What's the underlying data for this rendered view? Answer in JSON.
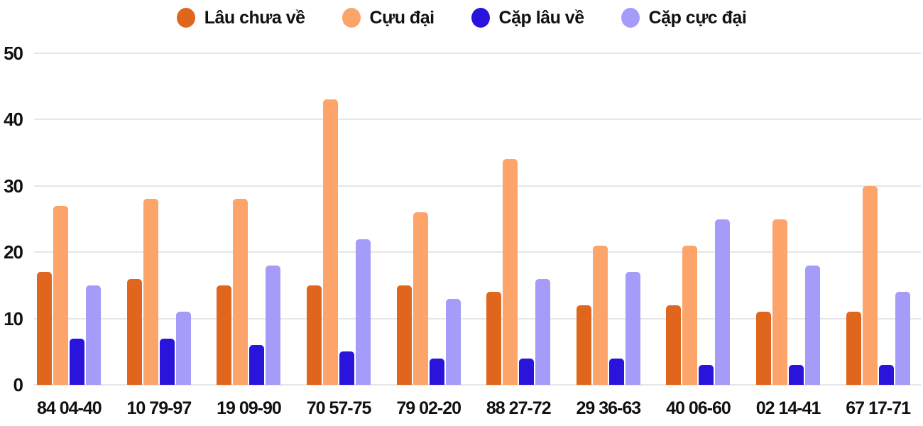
{
  "colors": {
    "background": "#FFFFFF",
    "grid": "#E6E6E6",
    "text": "#111111"
  },
  "chart_data": {
    "type": "bar",
    "title": "",
    "xlabel": "",
    "ylabel": "",
    "ylim": [
      0,
      50
    ],
    "yticks": [
      0,
      10,
      20,
      30,
      40,
      50
    ],
    "grid": true,
    "legend_position": "top",
    "categories": [
      "84 04-40",
      "10 79-97",
      "19 09-90",
      "70 57-75",
      "79 02-20",
      "88 27-72",
      "29 36-63",
      "40 06-60",
      "02 14-41",
      "67 17-71"
    ],
    "series": [
      {
        "name": "Lâu chưa về",
        "color": "#E0661E",
        "values": [
          17,
          16,
          15,
          15,
          15,
          14,
          12,
          12,
          11,
          11
        ]
      },
      {
        "name": "Cựu đại",
        "color": "#FCA469",
        "values": [
          27,
          28,
          28,
          43,
          26,
          34,
          21,
          21,
          25,
          30
        ]
      },
      {
        "name": "Cặp lâu về",
        "color": "#2A14DB",
        "values": [
          7,
          7,
          6,
          5,
          4,
          4,
          4,
          3,
          3,
          3
        ]
      },
      {
        "name": "Cặp cực đại",
        "color": "#A49CF8",
        "values": [
          15,
          11,
          18,
          22,
          13,
          16,
          17,
          25,
          18,
          14
        ]
      }
    ]
  }
}
